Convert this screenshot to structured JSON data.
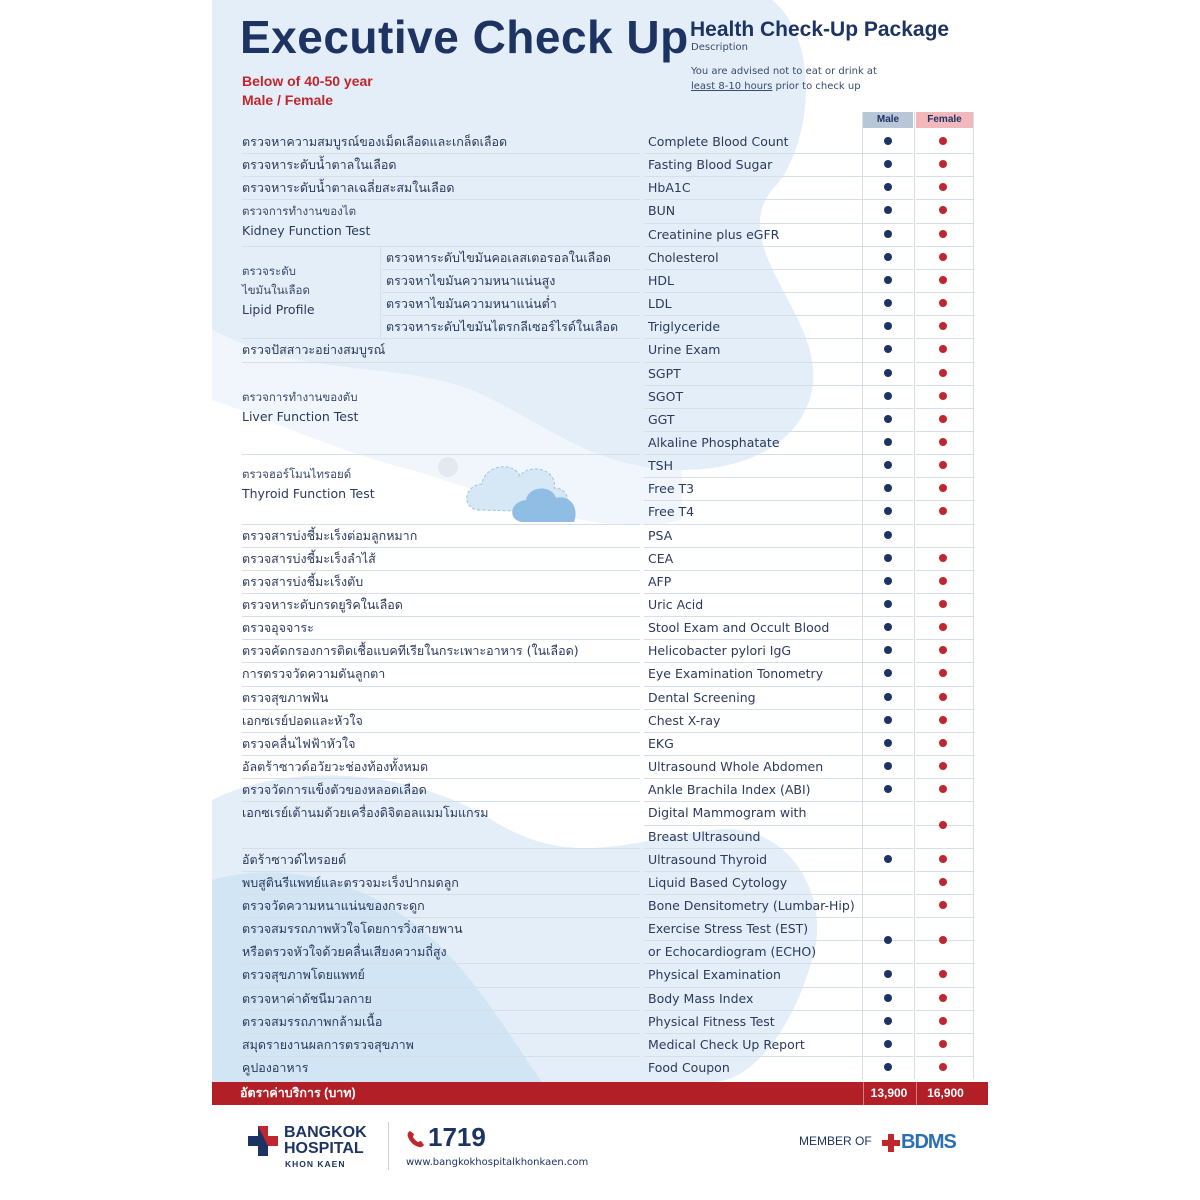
{
  "header": {
    "title": "Executive Check Up",
    "age_group": "Below of 40-50 year",
    "gender": "Male / Female",
    "package_title": "Health Check-Up Package",
    "package_desc": "Description",
    "advice_line1": "You are advised not to eat or drink at",
    "advice_hours": "least 8-10 hours",
    "advice_line2_rest": " prior to check up"
  },
  "columns": {
    "male": "Male",
    "female": "Female"
  },
  "colors": {
    "navy": "#1d3463",
    "red": "#c0262d",
    "price_bar": "#b21f27",
    "bdms_blue": "#2a6fb5"
  },
  "rows": [
    {
      "th": "ตรวจหาความสมบูรณ์ของเม็ดเลือดและเกล็ดเลือด",
      "en": "Complete Blood Count",
      "male": true,
      "female": true
    },
    {
      "th": "ตรวจหาระดับน้ำตาลในเลือด",
      "en": "Fasting Blood Sugar",
      "male": true,
      "female": true
    },
    {
      "th": "ตรวจหาระดับน้ำตาลเฉลี่ยสะสมในเลือด",
      "en": "HbA1C",
      "male": true,
      "female": true
    },
    {
      "th": "",
      "en": "BUN",
      "male": true,
      "female": true
    },
    {
      "th": "",
      "en": "Creatinine plus eGFR",
      "male": true,
      "female": true
    },
    {
      "th": "ตรวจหาระดับไขมันคอเลสเตอรอลในเลือด",
      "en": "Cholesterol",
      "male": true,
      "female": true
    },
    {
      "th": "ตรวจหาไขมันความหนาแน่นสูง",
      "en": "HDL",
      "male": true,
      "female": true
    },
    {
      "th": "ตรวจหาไขมันความหนาแน่นต่ำ",
      "en": "LDL",
      "male": true,
      "female": true
    },
    {
      "th": "ตรวจหาระดับไขมันไตรกลีเซอร์ไรด์ในเลือด",
      "en": "Triglyceride",
      "male": true,
      "female": true
    },
    {
      "th": "ตรวจปัสสาวะอย่างสมบูรณ์",
      "en": "Urine Exam",
      "male": true,
      "female": true
    },
    {
      "th": "",
      "en": "SGPT",
      "male": true,
      "female": true
    },
    {
      "th": "",
      "en": "SGOT",
      "male": true,
      "female": true
    },
    {
      "th": "",
      "en": "GGT",
      "male": true,
      "female": true
    },
    {
      "th": "",
      "en": "Alkaline Phosphatate",
      "male": true,
      "female": true
    },
    {
      "th": "",
      "en": "TSH",
      "male": true,
      "female": true
    },
    {
      "th": "",
      "en": "Free T3",
      "male": true,
      "female": true
    },
    {
      "th": "",
      "en": "Free T4",
      "male": true,
      "female": true
    },
    {
      "th": "ตรวจสารบ่งชี้มะเร็งต่อมลูกหมาก",
      "en": "PSA",
      "male": true,
      "female": false
    },
    {
      "th": "ตรวจสารบ่งชี้มะเร็งลำไส้",
      "en": "CEA",
      "male": true,
      "female": true
    },
    {
      "th": "ตรวจสารบ่งชี้มะเร็งตับ",
      "en": "AFP",
      "male": true,
      "female": true
    },
    {
      "th": "ตรวจหาระดับกรดยูริคในเลือด",
      "en": "Uric Acid",
      "male": true,
      "female": true
    },
    {
      "th": "ตรวจอุจจาระ",
      "en": "Stool Exam and Occult Blood",
      "male": true,
      "female": true
    },
    {
      "th": "ตรวจคัดกรองการติดเชื้อแบคทีเรียในกระเพาะอาหาร (ในเลือด)",
      "en": "Helicobacter pylori IgG",
      "male": true,
      "female": true
    },
    {
      "th": "การตรวจวัดความดันลูกตา",
      "en": "Eye Examination Tonometry",
      "male": true,
      "female": true
    },
    {
      "th": "ตรวจสุขภาพฟัน",
      "en": "Dental Screening",
      "male": true,
      "female": true
    },
    {
      "th": "เอกซเรย์ปอดและหัวใจ",
      "en": "Chest X-ray",
      "male": true,
      "female": true
    },
    {
      "th": "ตรวจคลื่นไฟฟ้าหัวใจ",
      "en": "EKG",
      "male": true,
      "female": true
    },
    {
      "th": "อัลตร้าซาวด์อวัยวะช่องท้องทั้งหมด",
      "en": "Ultrasound Whole Abdomen",
      "male": true,
      "female": true
    },
    {
      "th": "ตรวจวัดการแข็งตัวของหลอดเลือด",
      "en": "Ankle Brachila Index (ABI)",
      "male": true,
      "female": true
    },
    {
      "th": "เอกซเรย์เต้านมด้วยเครื่องดิจิตอลแมมโมแกรม",
      "en": "Digital Mammogram with",
      "male": false,
      "female": false
    },
    {
      "th": "",
      "en": "Breast Ultrasound",
      "male": false,
      "female": false
    },
    {
      "th": "อัตร้าซาวด์ไทรอยด์",
      "en": "Ultrasound Thyroid",
      "male": true,
      "female": true
    },
    {
      "th": "พบสูตินรีแพทย์และตรวจมะเร็งปากมดลูก",
      "en": "Liquid Based Cytology",
      "male": false,
      "female": true
    },
    {
      "th": "ตรวจวัดความหนาแน่นของกระดูก",
      "en": "Bone Densitometry (Lumbar-Hip)",
      "male": false,
      "female": true
    },
    {
      "th": "ตรวจสมรรถภาพหัวใจโดยการวิ่งสายพาน",
      "en": "Exercise Stress Test (EST)",
      "male": false,
      "female": false
    },
    {
      "th": "หรือตรวจหัวใจด้วยคลื่นเสียงความถี่สูง",
      "en": "or Echocardiogram (ECHO)",
      "male": false,
      "female": false
    },
    {
      "th": "ตรวจสุขภาพโดยแพทย์",
      "en": "Physical Examination",
      "male": true,
      "female": true
    },
    {
      "th": "ตรวจหาค่าดัชนีมวลกาย",
      "en": "Body Mass Index",
      "male": true,
      "female": true
    },
    {
      "th": "ตรวจสมรรถภาพกล้ามเนื้อ",
      "en": "Physical Fitness Test",
      "male": true,
      "female": true
    },
    {
      "th": "สมุดรายงานผลการตรวจสุขภาพ",
      "en": "Medical Check Up Report",
      "male": true,
      "female": true
    },
    {
      "th": "คูปองอาหาร",
      "en": "Food Coupon",
      "male": true,
      "female": true
    }
  ],
  "merged_marks": [
    {
      "start": 29,
      "span": 2,
      "male": false,
      "female": true
    },
    {
      "start": 34,
      "span": 2,
      "male": true,
      "female": true
    }
  ],
  "groups": {
    "kidney": {
      "th": "ตรวจการทำงานของไต",
      "en": "Kidney Function Test"
    },
    "lipid": {
      "th1": "ตรวจระดับ",
      "th2": "ไขมันในเลือด",
      "en": "Lipid Profile"
    },
    "liver": {
      "th": "ตรวจการทำงานของตับ",
      "en": "Liver Function Test"
    },
    "thyroid": {
      "th": "ตรวจฮอร์โมนไทรอยด์",
      "en": "Thyroid Function Test"
    }
  },
  "price": {
    "label": "อัตราค่าบริการ (บาท)",
    "male": "13,900",
    "female": "16,900"
  },
  "footer": {
    "logo_line1": "BANGKOK",
    "logo_line2": "HOSPITAL",
    "logo_line3": "KHON KAEN",
    "hotline": "1719",
    "website": "www.bangkokhospitalkhonkaen.com",
    "member_of": "MEMBER OF",
    "bdms": "BDMS"
  }
}
